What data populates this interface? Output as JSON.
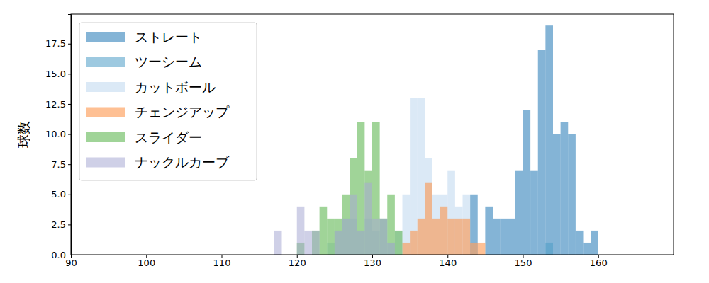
{
  "chart_data": {
    "type": "histogram",
    "y_label": "球数",
    "xlim": [
      90,
      170
    ],
    "xticks": [
      90,
      100,
      110,
      120,
      130,
      140,
      150,
      160
    ],
    "ylim": [
      0,
      19.95
    ],
    "yticks": [
      {
        "value": 0,
        "label": "0.0"
      },
      {
        "value": 2.5,
        "label": "2.5"
      },
      {
        "value": 5,
        "label": "5.0"
      },
      {
        "value": 7.5,
        "label": "7.5"
      },
      {
        "value": 10,
        "label": "10.0"
      },
      {
        "value": 12.5,
        "label": "12.5"
      },
      {
        "value": 15,
        "label": "15.0"
      },
      {
        "value": 17.5,
        "label": "17.5"
      }
    ],
    "legend": "upper left",
    "series": [
      {
        "name": "ストレート",
        "color": "#1f77b4",
        "bins": [
          143,
          144,
          145,
          146,
          147,
          148,
          149,
          150,
          151,
          152,
          153,
          154,
          155,
          156,
          157,
          158,
          159,
          160
        ],
        "values": [
          5,
          0,
          4,
          3,
          3,
          3,
          7,
          12,
          7,
          17,
          19,
          10,
          11,
          10,
          2,
          1,
          2
        ]
      },
      {
        "name": "ツーシーム",
        "color": "#4d9dc7",
        "bins": [
          153,
          154
        ],
        "values": [
          1
        ]
      },
      {
        "name": "カットボール",
        "color": "#bdd7ee",
        "bins": [
          124,
          125,
          126,
          127,
          128,
          129,
          130,
          131,
          132,
          133,
          134,
          135,
          136,
          137,
          138,
          139,
          140,
          141,
          142,
          143,
          144
        ],
        "values": [
          1,
          2,
          3,
          3,
          2,
          3,
          2,
          3,
          1,
          2,
          5,
          13,
          13,
          8,
          5,
          5,
          7,
          4,
          5,
          1
        ]
      },
      {
        "name": "チェンジアップ",
        "color": "#fd8d3c",
        "bins": [
          134,
          135,
          136,
          137,
          138,
          139,
          140,
          141,
          142,
          143,
          144,
          145
        ],
        "values": [
          1,
          2,
          3,
          6,
          3,
          4,
          3,
          3,
          3,
          1,
          1
        ]
      },
      {
        "name": "スライダー",
        "color": "#52b043",
        "bins": [
          120,
          121,
          122,
          123,
          124,
          125,
          126,
          127,
          128,
          129,
          130,
          131,
          132,
          133,
          134
        ],
        "values": [
          1,
          0,
          2,
          4,
          3,
          3,
          5,
          8,
          11,
          7,
          11,
          3,
          5,
          2
        ]
      },
      {
        "name": "ナックルカーブ",
        "color": "#a8aad4",
        "bins": [
          117,
          118,
          119,
          120,
          121,
          122,
          123,
          124,
          125,
          126,
          127,
          128,
          129,
          130,
          131,
          132,
          133
        ],
        "values": [
          2,
          0,
          0,
          4,
          2,
          2,
          0,
          0,
          2,
          3,
          5,
          2,
          6,
          3,
          3,
          1
        ]
      }
    ]
  }
}
